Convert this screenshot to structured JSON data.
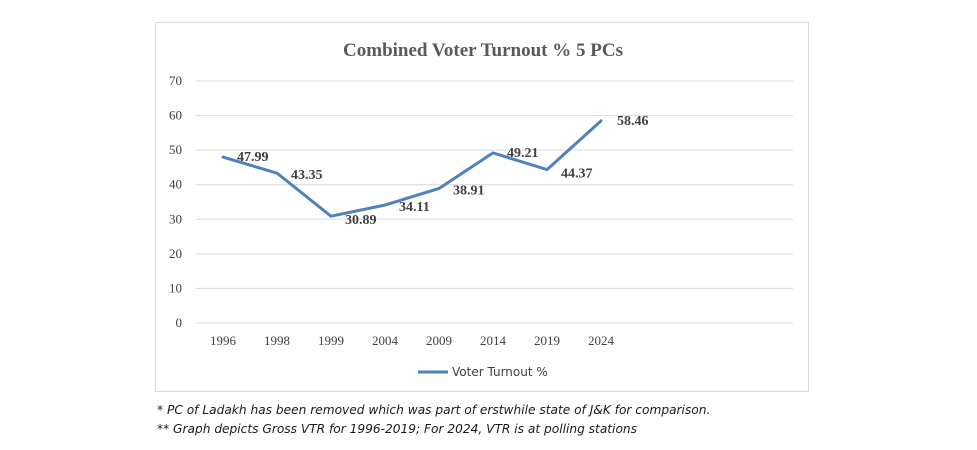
{
  "chart_data": {
    "type": "line",
    "title": "Combined Voter Turnout % 5 PCs",
    "categories": [
      "1996",
      "1998",
      "1999",
      "2004",
      "2009",
      "2014",
      "2019",
      "2024"
    ],
    "series": [
      {
        "name": "Voter Turnout %",
        "values": [
          47.99,
          43.35,
          30.89,
          34.11,
          38.91,
          49.21,
          44.37,
          58.46
        ],
        "color": "#4f81bd"
      }
    ],
    "data_labels": [
      "47.99",
      "43.35",
      "30.89",
      "34.11",
      "38.91",
      "49.21",
      "44.37",
      "58.46"
    ],
    "ylim": [
      0,
      70
    ],
    "yticks": [
      "0",
      "10",
      "20",
      "30",
      "40",
      "50",
      "60",
      "70"
    ],
    "xlabel": "",
    "ylabel": "",
    "grid": true,
    "legend": "bottom"
  },
  "notes": {
    "line1": "* PC of Ladakh has been removed which was part of erstwhile state of J&K for comparison.",
    "line2": "** Graph depicts Gross VTR for 1996-2019; For 2024, VTR is at polling stations"
  }
}
